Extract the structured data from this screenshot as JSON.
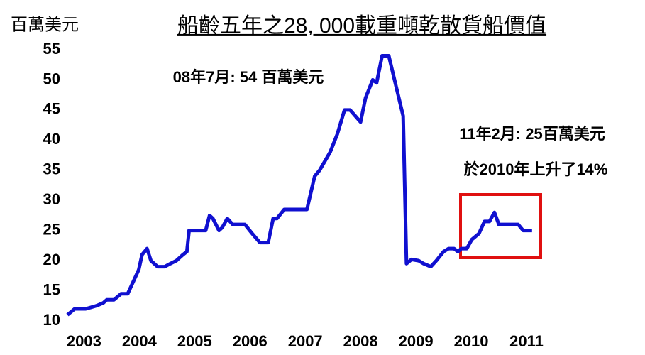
{
  "chart_data": {
    "type": "line",
    "title": "船齡五年之28, 000載重噸乾散貨船價值",
    "y_label": "百萬美元",
    "annotations": [
      "08年7月: 54 百萬美元",
      "11年2月: 25百萬美元",
      "於2010年上升了14%"
    ],
    "xlim": [
      2002.7,
      2011.5
    ],
    "xticks": [
      2003,
      2004,
      2005,
      2006,
      2007,
      2008,
      2009,
      2010,
      2011
    ],
    "ylim": [
      10,
      55
    ],
    "yticks": [
      10,
      15,
      20,
      25,
      30,
      35,
      40,
      45,
      50,
      55
    ],
    "grid": false,
    "series": [
      {
        "color": "#1010d0",
        "x": [
          2002.7,
          2002.83,
          2003.03,
          2003.22,
          2003.35,
          2003.41,
          2003.54,
          2003.67,
          2003.79,
          2003.99,
          2004.05,
          2004.14,
          2004.21,
          2004.33,
          2004.46,
          2004.56,
          2004.67,
          2004.79,
          2004.86,
          2004.9,
          2005.2,
          2005.27,
          2005.33,
          2005.44,
          2005.5,
          2005.59,
          2005.69,
          2005.91,
          2006.04,
          2006.18,
          2006.33,
          2006.42,
          2006.49,
          2006.62,
          2007.03,
          2007.17,
          2007.26,
          2007.45,
          2007.58,
          2007.71,
          2007.81,
          2008.0,
          2008.09,
          2008.22,
          2008.29,
          2008.39,
          2008.51,
          2008.64,
          2008.77,
          2008.83,
          2008.92,
          2009.05,
          2009.14,
          2009.27,
          2009.37,
          2009.5,
          2009.59,
          2009.69,
          2009.76,
          2009.82,
          2009.92,
          2010.01,
          2010.14,
          2010.24,
          2010.33,
          2010.42,
          2010.5,
          2010.78,
          2010.85,
          2010.94,
          2011.1
        ],
        "values": [
          11,
          12,
          12,
          12.5,
          13,
          13.5,
          13.5,
          14.5,
          14.5,
          18.5,
          21,
          22,
          20,
          19,
          19,
          19.5,
          20,
          21,
          21.5,
          25,
          25,
          27.5,
          27,
          25,
          25.5,
          27,
          26,
          26,
          24.5,
          23,
          23,
          27,
          27,
          28.5,
          28.5,
          34,
          35,
          38,
          41,
          45,
          45,
          43,
          47,
          50,
          49.5,
          54,
          54,
          49,
          44,
          19.5,
          20.2,
          20,
          19.5,
          19,
          20,
          21.5,
          22,
          22,
          21.5,
          22,
          22,
          23.5,
          24.5,
          26.5,
          26.5,
          28,
          26,
          26,
          26,
          25,
          25
        ]
      }
    ]
  }
}
